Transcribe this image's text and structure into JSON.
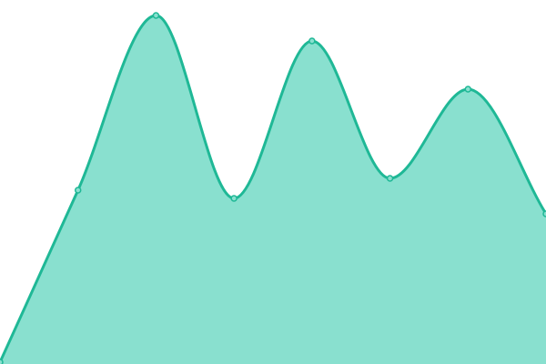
{
  "chart_data": {
    "type": "area",
    "title": "",
    "xlabel": "",
    "ylabel": "",
    "x": [
      0,
      1,
      2,
      3,
      4,
      5,
      6,
      7
    ],
    "values": [
      2,
      191,
      383,
      182,
      355,
      204,
      302,
      165
    ],
    "ylim": [
      0,
      400
    ],
    "grid": false,
    "legend": "none",
    "smooth": true,
    "colors": {
      "line": "#1fb896",
      "fill": "#89e0cf",
      "point_fill": "#89e0cf"
    }
  }
}
